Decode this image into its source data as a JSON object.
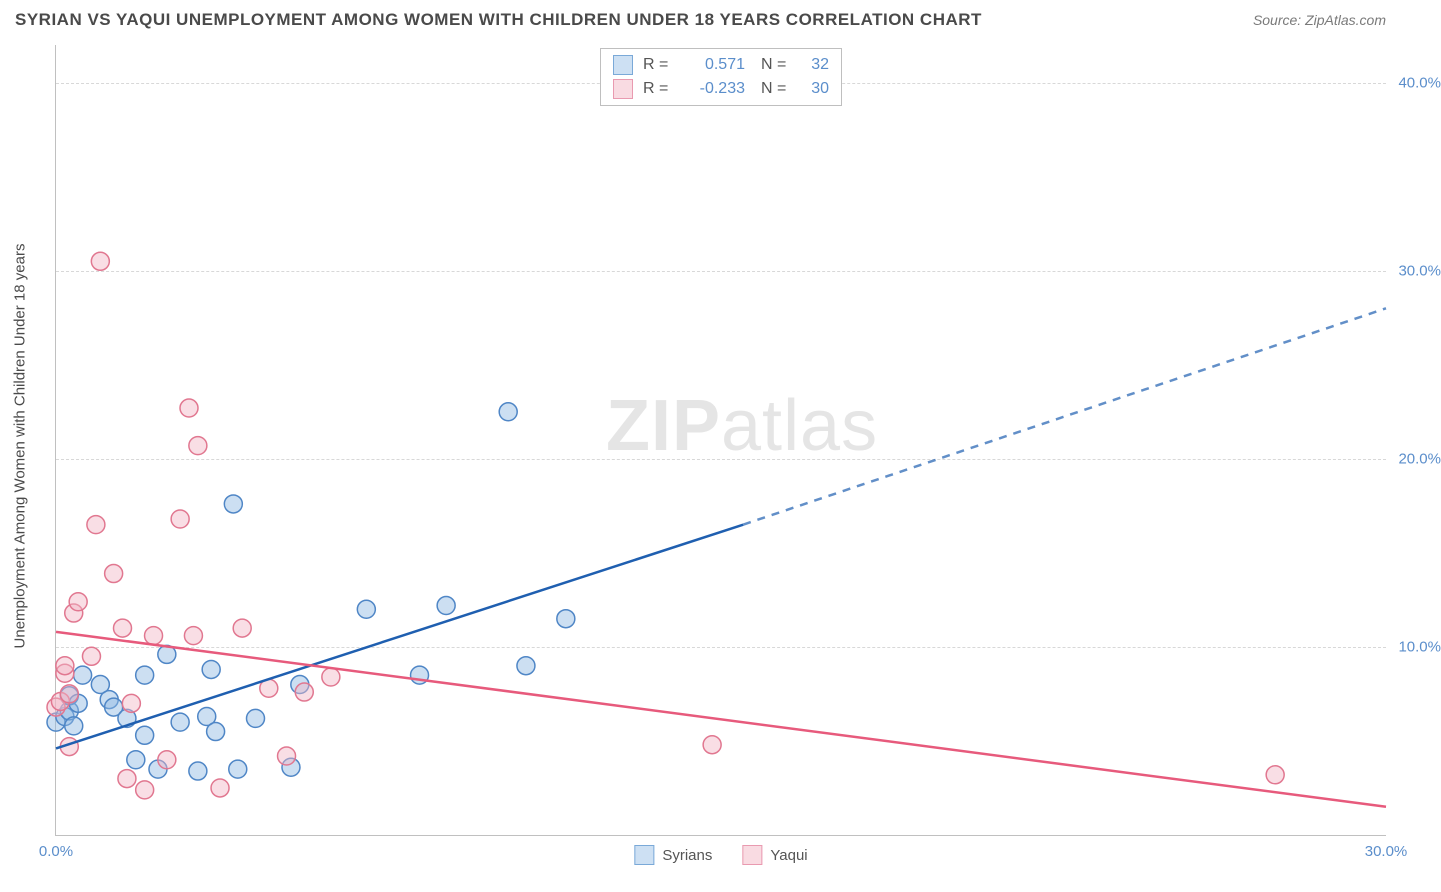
{
  "title": "SYRIAN VS YAQUI UNEMPLOYMENT AMONG WOMEN WITH CHILDREN UNDER 18 YEARS CORRELATION CHART",
  "source": "Source: ZipAtlas.com",
  "watermark_zip": "ZIP",
  "watermark_atlas": "atlas",
  "ylabel": "Unemployment Among Women with Children Under 18 years",
  "chart": {
    "type": "scatter",
    "xlim": [
      0,
      30
    ],
    "ylim": [
      0,
      42
    ],
    "y_ticks": [
      10,
      20,
      30,
      40
    ],
    "y_tick_labels": [
      "10.0%",
      "20.0%",
      "30.0%",
      "40.0%"
    ],
    "x_ticks": [
      0,
      30
    ],
    "x_tick_labels": [
      "0.0%",
      "30.0%"
    ],
    "background_color": "#ffffff",
    "grid_color": "#d8d8d8",
    "axis_color": "#c0c0c0",
    "tick_label_color": "#5b8ecb",
    "marker_radius": 9,
    "marker_opacity": 0.45,
    "line_width": 2.5,
    "series": [
      {
        "name": "Syrians",
        "fill_color": "#8fb7e3",
        "stroke_color": "#4f86c6",
        "line_color": "#1f5fb0",
        "r": "0.571",
        "n": "32",
        "trend": {
          "x1": 0,
          "y1": 4.6,
          "x2": 15.5,
          "y2": 16.5,
          "x2_ext": 30,
          "y2_ext": 28.0
        },
        "points": [
          [
            0.0,
            6.0
          ],
          [
            0.2,
            6.3
          ],
          [
            0.3,
            6.6
          ],
          [
            0.3,
            7.4
          ],
          [
            0.4,
            5.8
          ],
          [
            0.5,
            7.0
          ],
          [
            0.6,
            8.5
          ],
          [
            1.0,
            8.0
          ],
          [
            1.2,
            7.2
          ],
          [
            1.3,
            6.8
          ],
          [
            1.6,
            6.2
          ],
          [
            1.8,
            4.0
          ],
          [
            2.0,
            8.5
          ],
          [
            2.0,
            5.3
          ],
          [
            2.3,
            3.5
          ],
          [
            2.5,
            9.6
          ],
          [
            2.8,
            6.0
          ],
          [
            3.2,
            3.4
          ],
          [
            3.4,
            6.3
          ],
          [
            3.5,
            8.8
          ],
          [
            3.6,
            5.5
          ],
          [
            4.0,
            17.6
          ],
          [
            4.1,
            3.5
          ],
          [
            4.5,
            6.2
          ],
          [
            5.3,
            3.6
          ],
          [
            5.5,
            8.0
          ],
          [
            7.0,
            12.0
          ],
          [
            8.2,
            8.5
          ],
          [
            8.8,
            12.2
          ],
          [
            10.2,
            22.5
          ],
          [
            10.6,
            9.0
          ],
          [
            11.5,
            11.5
          ]
        ]
      },
      {
        "name": "Yaqui",
        "fill_color": "#f2b6c5",
        "stroke_color": "#e17790",
        "line_color": "#e75a7c",
        "r": "-0.233",
        "n": "30",
        "trend": {
          "x1": 0,
          "y1": 10.8,
          "x2": 30,
          "y2": 1.5,
          "x2_ext": 30,
          "y2_ext": 1.5
        },
        "points": [
          [
            0.0,
            6.8
          ],
          [
            0.1,
            7.1
          ],
          [
            0.2,
            8.6
          ],
          [
            0.2,
            9.0
          ],
          [
            0.3,
            4.7
          ],
          [
            0.3,
            7.5
          ],
          [
            0.4,
            11.8
          ],
          [
            0.5,
            12.4
          ],
          [
            0.8,
            9.5
          ],
          [
            0.9,
            16.5
          ],
          [
            1.0,
            30.5
          ],
          [
            1.3,
            13.9
          ],
          [
            1.5,
            11.0
          ],
          [
            1.6,
            3.0
          ],
          [
            1.7,
            7.0
          ],
          [
            2.0,
            2.4
          ],
          [
            2.2,
            10.6
          ],
          [
            2.5,
            4.0
          ],
          [
            2.8,
            16.8
          ],
          [
            3.0,
            22.7
          ],
          [
            3.1,
            10.6
          ],
          [
            3.2,
            20.7
          ],
          [
            3.7,
            2.5
          ],
          [
            4.2,
            11.0
          ],
          [
            4.8,
            7.8
          ],
          [
            5.2,
            4.2
          ],
          [
            5.6,
            7.6
          ],
          [
            14.8,
            4.8
          ],
          [
            27.5,
            3.2
          ],
          [
            6.2,
            8.4
          ]
        ]
      }
    ],
    "legend_top_rows": [
      {
        "swatch_fill": "#cde0f3",
        "swatch_border": "#7aa9d8",
        "r_label": "R =",
        "r_val": "0.571",
        "n_label": "N =",
        "n_val": "32"
      },
      {
        "swatch_fill": "#f9dbe2",
        "swatch_border": "#e99ab0",
        "r_label": "R =",
        "r_val": "-0.233",
        "n_label": "N =",
        "n_val": "30"
      }
    ],
    "legend_bottom": [
      {
        "swatch_fill": "#cde0f3",
        "swatch_border": "#7aa9d8",
        "label": "Syrians"
      },
      {
        "swatch_fill": "#f9dbe2",
        "swatch_border": "#e99ab0",
        "label": "Yaqui"
      }
    ]
  }
}
